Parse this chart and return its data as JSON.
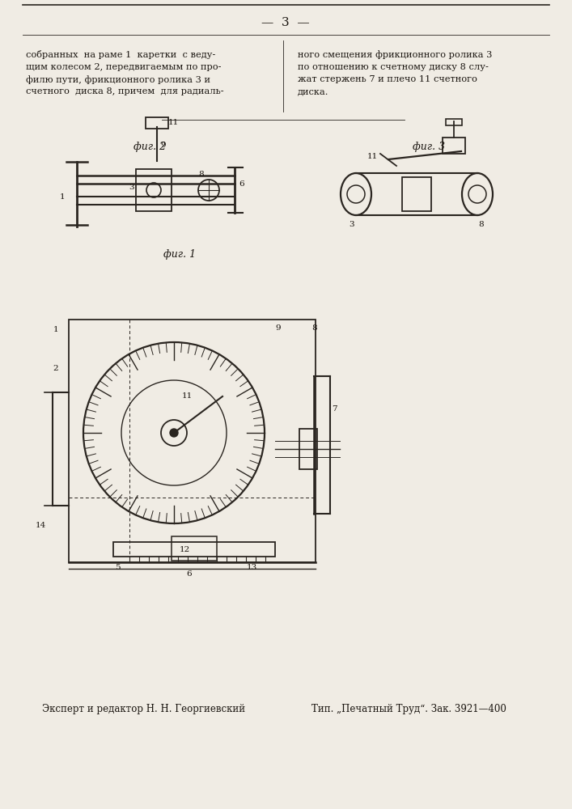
{
  "page_number": "3",
  "text_col1": [
    "собранных  на раме 1  каретки  с веду-",
    "щим колесом 2, передвигаемым по про-",
    "филю пути, фрикционного ролика 3 и",
    "счетного  диска 8, причем  для радиаль-"
  ],
  "text_col2": [
    "ного смещения фрикционного ролика 3",
    "по отношению к счетному диску 8 слу-",
    "жат стержень 7 и плечо 11 счетного",
    "диска."
  ],
  "fig2_label": "фиг. 2",
  "fig3_label": "фиг. 3",
  "fig1_label": "фиг. 1",
  "bottom_text1": "Эксперт и редактор Н. Н. Георгиевский",
  "bottom_text2": "Тип. „Печатный Труд“. Зак. 3921—400",
  "bg_color": "#f0ece4",
  "line_color": "#2a2520",
  "text_color": "#1a1510"
}
